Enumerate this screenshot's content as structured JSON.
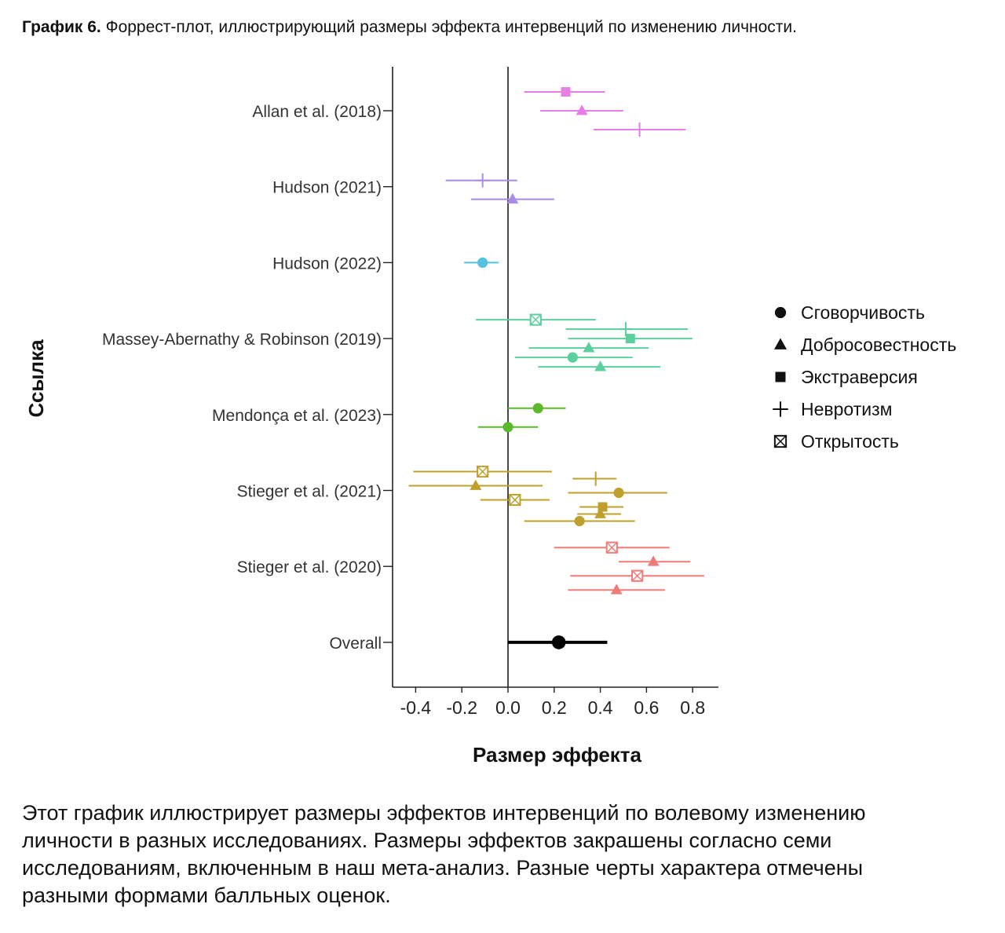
{
  "caption": {
    "label": "График 6.",
    "text": " Форрест-плот, иллюстрирующий размеры эффекта интервенций по изменению личности."
  },
  "description": "Этот график иллюстрирует размеры эффектов интервенций по волевому изменению личности в разных исследованиях. Размеры эффектов закрашены согласно семи исследованиям, включенным в наш мета-анализ. Разные черты характера отмечены разными формами балльных оценок.",
  "chart_data": {
    "type": "forest",
    "xlabel": "Размер эффекта",
    "ylabel": "Ссылка",
    "xlim": [
      -0.5,
      0.9
    ],
    "xticks": [
      -0.4,
      -0.2,
      0.0,
      0.2,
      0.4,
      0.6,
      0.8
    ],
    "xtick_labels": [
      "-0.4",
      "-0.2",
      "0.0",
      "0.2",
      "0.4",
      "0.6",
      "0.8"
    ],
    "reference_line": 0,
    "legend_position": "right",
    "legend": [
      {
        "label": "Сговорчивость",
        "shape": "circle"
      },
      {
        "label": "Добросовестность",
        "shape": "triangle"
      },
      {
        "label": "Экстраверсия",
        "shape": "square"
      },
      {
        "label": "Невротизм",
        "shape": "plus"
      },
      {
        "label": "Открытость",
        "shape": "boxed-x"
      }
    ],
    "studies": [
      {
        "label": "Allan et al. (2018)",
        "color": "#e67ee6",
        "points": [
          {
            "trait": "square",
            "est": 0.25,
            "lo": 0.07,
            "hi": 0.42
          },
          {
            "trait": "triangle",
            "est": 0.32,
            "lo": 0.14,
            "hi": 0.5
          },
          {
            "trait": "plus",
            "est": 0.57,
            "lo": 0.37,
            "hi": 0.77
          }
        ]
      },
      {
        "label": "Hudson (2021)",
        "color": "#a98be8",
        "points": [
          {
            "trait": "plus",
            "est": -0.11,
            "lo": -0.27,
            "hi": 0.04
          },
          {
            "trait": "triangle",
            "est": 0.02,
            "lo": -0.16,
            "hi": 0.2
          }
        ]
      },
      {
        "label": "Hudson (2022)",
        "color": "#56c2e0",
        "points": [
          {
            "trait": "circle",
            "est": -0.11,
            "lo": -0.19,
            "hi": -0.04
          }
        ]
      },
      {
        "label": "Massey-Abernathy & Robinson (2019)",
        "color": "#5ccf9e",
        "points": [
          {
            "trait": "boxed-x",
            "est": 0.12,
            "lo": -0.14,
            "hi": 0.38
          },
          {
            "trait": "plus",
            "est": 0.51,
            "lo": 0.25,
            "hi": 0.78
          },
          {
            "trait": "square",
            "est": 0.53,
            "lo": 0.26,
            "hi": 0.8
          },
          {
            "trait": "triangle",
            "est": 0.35,
            "lo": 0.09,
            "hi": 0.61
          },
          {
            "trait": "circle",
            "est": 0.28,
            "lo": 0.03,
            "hi": 0.54
          },
          {
            "trait": "triangle",
            "est": 0.4,
            "lo": 0.13,
            "hi": 0.66
          }
        ]
      },
      {
        "label": "Mendonça et al. (2023)",
        "color": "#5cb82d",
        "points": [
          {
            "trait": "circle",
            "est": 0.13,
            "lo": 0.0,
            "hi": 0.25
          },
          {
            "trait": "circle",
            "est": 0.0,
            "lo": -0.13,
            "hi": 0.13
          }
        ]
      },
      {
        "label": "Stieger et al. (2021)",
        "color": "#bfa02e",
        "points": [
          {
            "trait": "boxed-x",
            "est": -0.11,
            "lo": -0.41,
            "hi": 0.19
          },
          {
            "trait": "plus",
            "est": 0.38,
            "lo": 0.28,
            "hi": 0.47
          },
          {
            "trait": "triangle",
            "est": -0.14,
            "lo": -0.43,
            "hi": 0.15
          },
          {
            "trait": "circle",
            "est": 0.48,
            "lo": 0.26,
            "hi": 0.69
          },
          {
            "trait": "boxed-x",
            "est": 0.03,
            "lo": -0.12,
            "hi": 0.18
          },
          {
            "trait": "square",
            "est": 0.41,
            "lo": 0.31,
            "hi": 0.5
          },
          {
            "trait": "triangle",
            "est": 0.4,
            "lo": 0.3,
            "hi": 0.49
          },
          {
            "trait": "circle",
            "est": 0.31,
            "lo": 0.07,
            "hi": 0.55
          }
        ]
      },
      {
        "label": "Stieger et al. (2020)",
        "color": "#ee7c79",
        "points": [
          {
            "trait": "boxed-x",
            "est": 0.45,
            "lo": 0.2,
            "hi": 0.7
          },
          {
            "trait": "triangle",
            "est": 0.63,
            "lo": 0.48,
            "hi": 0.79
          },
          {
            "trait": "boxed-x",
            "est": 0.56,
            "lo": 0.27,
            "hi": 0.85
          },
          {
            "trait": "triangle",
            "est": 0.47,
            "lo": 0.26,
            "hi": 0.68
          }
        ]
      },
      {
        "label": "Overall",
        "color": "#000000",
        "points": [
          {
            "trait": "circle",
            "est": 0.22,
            "lo": 0.0,
            "hi": 0.43
          }
        ]
      }
    ]
  }
}
